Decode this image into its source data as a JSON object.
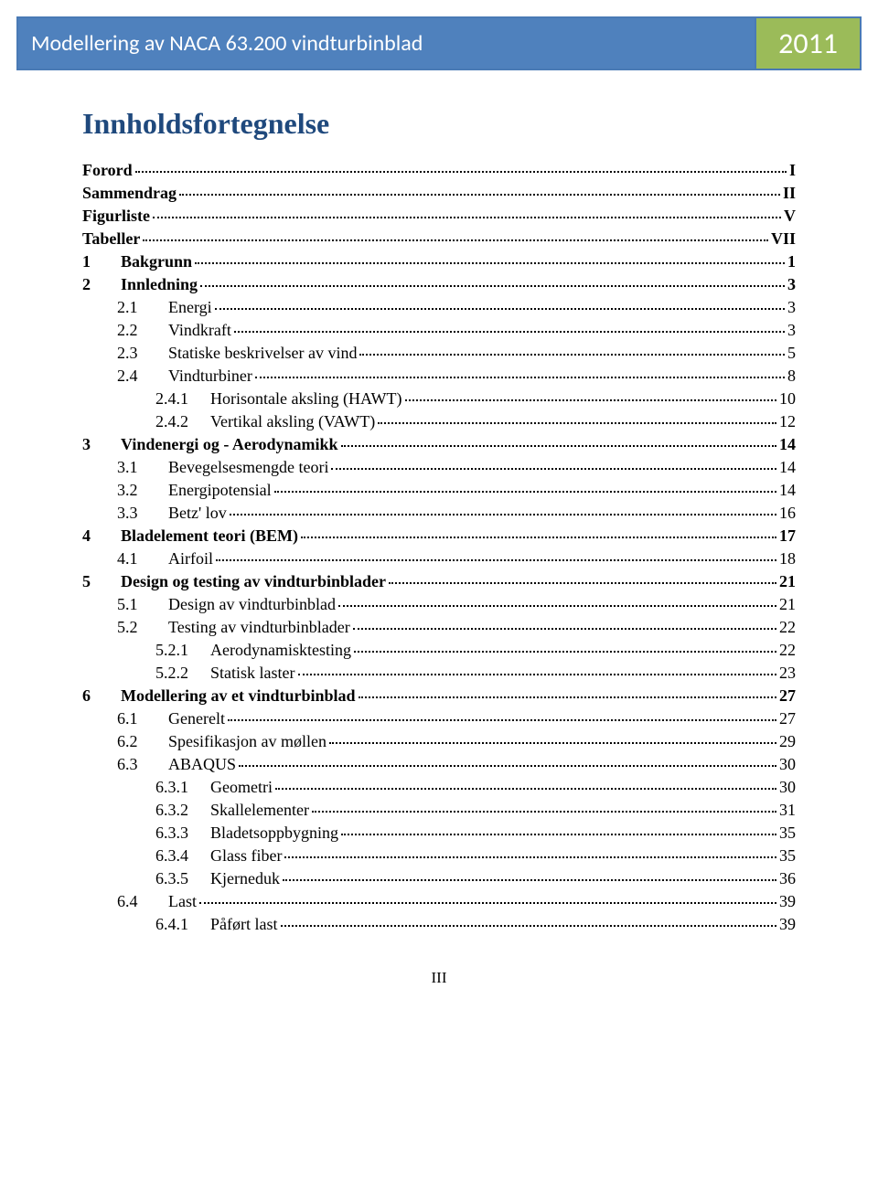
{
  "header": {
    "title": "Modellering av NACA 63.200 vindturbinblad",
    "year": "2011",
    "title_bg": "#4f81bd",
    "year_bg": "#9bbb59",
    "border_color": "#4a7ab5"
  },
  "toc_title": "Innholdsfortegnelse",
  "toc_title_color": "#1f497d",
  "footer": "III",
  "entries": [
    {
      "level": 0,
      "bold": true,
      "num": "",
      "text": "Forord",
      "page": "I"
    },
    {
      "level": 0,
      "bold": true,
      "num": "",
      "text": "Sammendrag",
      "page": "II"
    },
    {
      "level": 0,
      "bold": true,
      "num": "",
      "text": "Figurliste",
      "page": "V"
    },
    {
      "level": 0,
      "bold": true,
      "num": "",
      "text": "Tabeller",
      "page": "VII"
    },
    {
      "level": 1,
      "bold": true,
      "num": "1",
      "text": "Bakgrunn",
      "page": "1"
    },
    {
      "level": 1,
      "bold": true,
      "num": "2",
      "text": "Innledning",
      "page": "3"
    },
    {
      "level": 2,
      "bold": false,
      "num": "2.1",
      "text": "Energi",
      "page": "3"
    },
    {
      "level": 2,
      "bold": false,
      "num": "2.2",
      "text": "Vindkraft",
      "page": "3"
    },
    {
      "level": 2,
      "bold": false,
      "num": "2.3",
      "text": "Statiske beskrivelser av vind",
      "page": "5"
    },
    {
      "level": 2,
      "bold": false,
      "num": "2.4",
      "text": "Vindturbiner",
      "page": "8"
    },
    {
      "level": 3,
      "bold": false,
      "num": "2.4.1",
      "text": "Horisontale aksling (HAWT)",
      "page": "10"
    },
    {
      "level": 3,
      "bold": false,
      "num": "2.4.2",
      "text": "Vertikal aksling (VAWT)",
      "page": "12"
    },
    {
      "level": 1,
      "bold": true,
      "num": "3",
      "text": "Vindenergi og - Aerodynamikk",
      "page": "14"
    },
    {
      "level": 2,
      "bold": false,
      "num": "3.1",
      "text": "Bevegelsesmengde teori",
      "page": "14"
    },
    {
      "level": 2,
      "bold": false,
      "num": "3.2",
      "text": "Energipotensial",
      "page": "14"
    },
    {
      "level": 2,
      "bold": false,
      "num": "3.3",
      "text": "Betz' lov",
      "page": "16"
    },
    {
      "level": 1,
      "bold": true,
      "num": "4",
      "text": "Bladelement teori (BEM)",
      "page": "17"
    },
    {
      "level": 2,
      "bold": false,
      "num": "4.1",
      "text": "Airfoil",
      "page": "18"
    },
    {
      "level": 1,
      "bold": true,
      "num": "5",
      "text": "Design og testing av vindturbinblader",
      "page": "21"
    },
    {
      "level": 2,
      "bold": false,
      "num": "5.1",
      "text": "Design av vindturbinblad",
      "page": "21"
    },
    {
      "level": 2,
      "bold": false,
      "num": "5.2",
      "text": "Testing av vindturbinblader",
      "page": "22"
    },
    {
      "level": 3,
      "bold": false,
      "num": "5.2.1",
      "text": "Aerodynamisktesting",
      "page": "22"
    },
    {
      "level": 3,
      "bold": false,
      "num": "5.2.2",
      "text": "Statisk laster",
      "page": "23"
    },
    {
      "level": 1,
      "bold": true,
      "num": "6",
      "text": "Modellering av et vindturbinblad",
      "page": "27"
    },
    {
      "level": 2,
      "bold": false,
      "num": "6.1",
      "text": "Generelt",
      "page": "27"
    },
    {
      "level": 2,
      "bold": false,
      "num": "6.2",
      "text": "Spesifikasjon av møllen",
      "page": "29"
    },
    {
      "level": 2,
      "bold": false,
      "num": "6.3",
      "text": "ABAQUS",
      "page": "30"
    },
    {
      "level": 3,
      "bold": false,
      "num": "6.3.1",
      "text": "Geometri",
      "page": "30"
    },
    {
      "level": 3,
      "bold": false,
      "num": "6.3.2",
      "text": "Skallelementer",
      "page": "31"
    },
    {
      "level": 3,
      "bold": false,
      "num": "6.3.3",
      "text": "Bladetsoppbygning",
      "page": "35"
    },
    {
      "level": 3,
      "bold": false,
      "num": "6.3.4",
      "text": "Glass fiber",
      "page": "35"
    },
    {
      "level": 3,
      "bold": false,
      "num": "6.3.5",
      "text": "Kjerneduk",
      "page": "36"
    },
    {
      "level": 2,
      "bold": false,
      "num": "6.4",
      "text": "Last",
      "page": "39"
    },
    {
      "level": 3,
      "bold": false,
      "num": "6.4.1",
      "text": "Påført last",
      "page": "39"
    }
  ]
}
